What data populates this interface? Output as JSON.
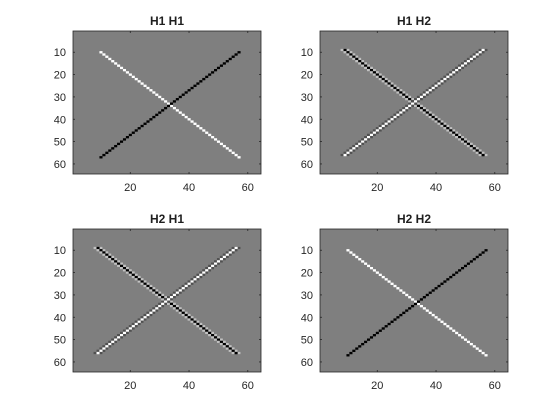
{
  "chart_data": [
    {
      "type": "heatmap",
      "title": "H1 H1",
      "xlim": [
        0.5,
        64.5
      ],
      "ylim": [
        0.5,
        64.5
      ],
      "y_direction": "reversed",
      "xticks": [
        20,
        40,
        60
      ],
      "yticks": [
        10,
        20,
        30,
        40,
        50,
        60
      ],
      "background_value": "gray",
      "lines": [
        {
          "from": [
            10,
            10
          ],
          "to": [
            57,
            57
          ],
          "color": "white",
          "description": "bright diagonal, top-left to bottom-right"
        },
        {
          "from": [
            57,
            10
          ],
          "to": [
            10,
            57
          ],
          "color": "black",
          "description": "dark diagonal, top-right to bottom-left"
        }
      ]
    },
    {
      "type": "heatmap",
      "title": "H1 H2",
      "xlim": [
        0.5,
        64.5
      ],
      "ylim": [
        0.5,
        64.5
      ],
      "y_direction": "reversed",
      "xticks": [
        20,
        40,
        60
      ],
      "yticks": [
        10,
        20,
        30,
        40,
        50,
        60
      ],
      "background_value": "gray",
      "lines": [
        {
          "from": [
            9,
            9
          ],
          "to": [
            56,
            56
          ],
          "color": "black",
          "edge_color": "gray-light",
          "description": "thick dark diagonal, top-left to bottom-right"
        },
        {
          "from": [
            56,
            9
          ],
          "to": [
            9,
            56
          ],
          "color": "white",
          "edge_color": "gray-dark",
          "description": "thick bright diagonal, top-right to bottom-left"
        }
      ]
    },
    {
      "type": "heatmap",
      "title": "H2 H1",
      "xlim": [
        0.5,
        64.5
      ],
      "ylim": [
        0.5,
        64.5
      ],
      "y_direction": "reversed",
      "xticks": [
        20,
        40,
        60
      ],
      "yticks": [
        10,
        20,
        30,
        40,
        50,
        60
      ],
      "background_value": "gray",
      "lines": [
        {
          "from": [
            9,
            9
          ],
          "to": [
            56,
            56
          ],
          "color": "black",
          "edge_color": "gray-light",
          "description": "thick dark diagonal, top-left to bottom-right"
        },
        {
          "from": [
            56,
            9
          ],
          "to": [
            9,
            56
          ],
          "color": "white",
          "edge_color": "gray-dark",
          "description": "thick bright diagonal, top-right to bottom-left"
        }
      ]
    },
    {
      "type": "heatmap",
      "title": "H2 H2",
      "xlim": [
        0.5,
        64.5
      ],
      "ylim": [
        0.5,
        64.5
      ],
      "y_direction": "reversed",
      "xticks": [
        20,
        40,
        60
      ],
      "yticks": [
        10,
        20,
        30,
        40,
        50,
        60
      ],
      "background_value": "gray",
      "lines": [
        {
          "from": [
            10,
            10
          ],
          "to": [
            57,
            57
          ],
          "color": "white",
          "description": "bright diagonal, top-left to bottom-right"
        },
        {
          "from": [
            57,
            10
          ],
          "to": [
            10,
            57
          ],
          "color": "black",
          "description": "dark diagonal, top-right to bottom-left"
        }
      ]
    }
  ],
  "colors": {
    "background": "#7f7f7f",
    "bright": "#ffffff",
    "dark": "#000000",
    "edge_light": "#c2c2c2",
    "edge_dark": "#505050",
    "axis": "#262626",
    "page": "#ffffff"
  }
}
